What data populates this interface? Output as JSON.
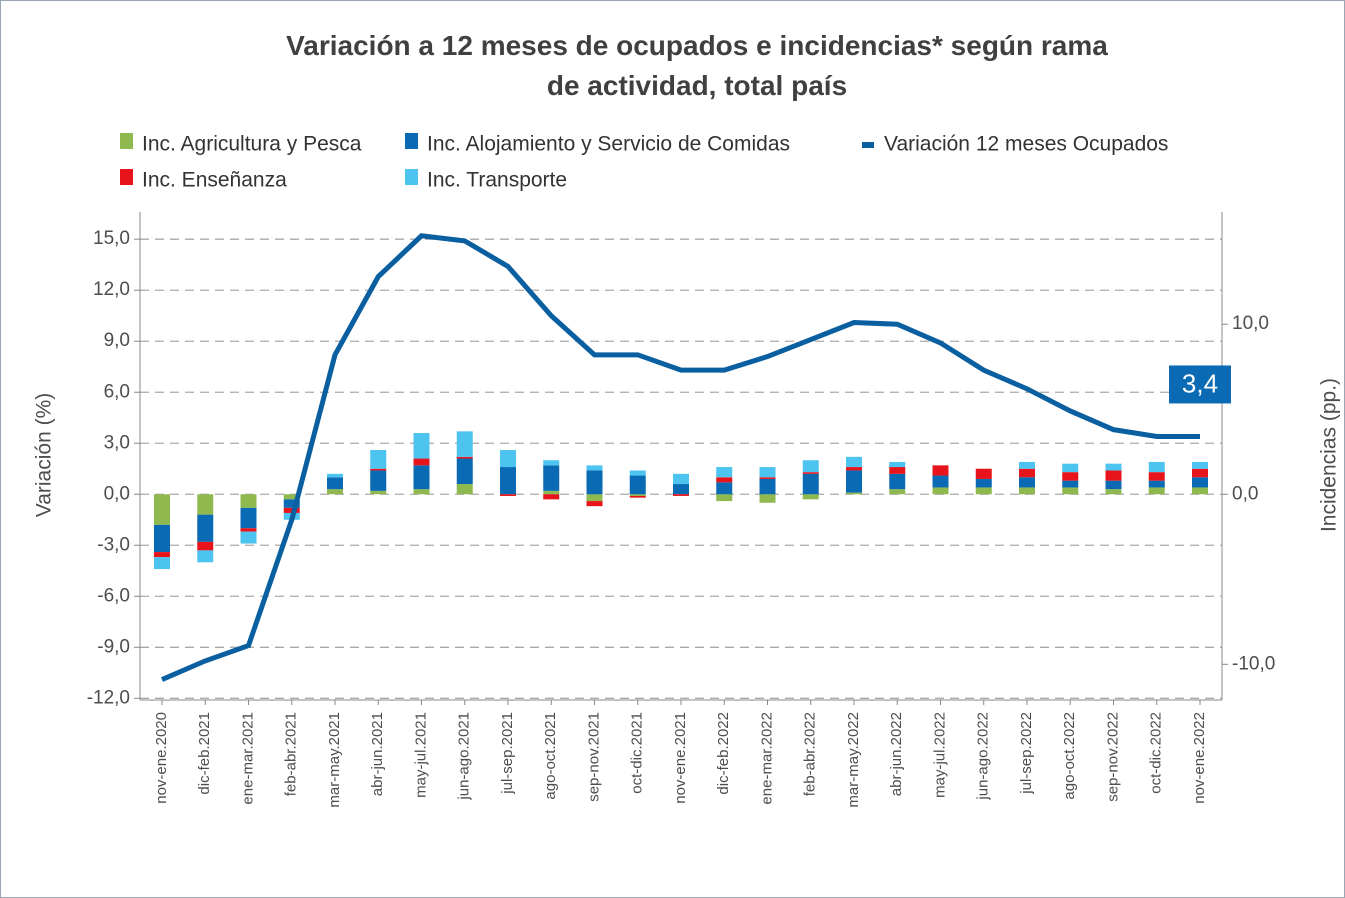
{
  "chart_data": {
    "type": "bar",
    "title": "Variación a 12 meses de ocupados e incidencias* según rama de actividad, total país",
    "y_label": "Variación (%)",
    "y2_label": "Incidencias (pp.)",
    "categories": [
      "nov-ene.2020",
      "dic-feb.2021",
      "ene-mar.2021",
      "feb-abr.2021",
      "mar-may.2021",
      "abr-jun.2021",
      "may-jul.2021",
      "jun-ago.2021",
      "jul-sep.2021",
      "ago-oct.2021",
      "sep-nov.2021",
      "oct-dic.2021",
      "nov-ene.2021",
      "dic-feb.2022",
      "ene-mar.2022",
      "feb-abr.2022",
      "mar-may.2022",
      "abr-jun.2022",
      "may-jul.2022",
      "jun-ago.2022",
      "jul-sep.2022",
      "ago-oct.2022",
      "sep-nov.2022",
      "oct-dic.2022",
      "nov-ene.2022"
    ],
    "series": [
      {
        "name": "Inc. Agricultura y Pesca",
        "type": "bar",
        "axis": "y2",
        "color": "#8fb84f",
        "values": [
          -1.8,
          -1.2,
          -0.8,
          -0.3,
          0.3,
          0.2,
          0.3,
          0.6,
          0.0,
          0.2,
          -0.4,
          -0.1,
          0.0,
          -0.4,
          -0.5,
          -0.3,
          0.1,
          0.3,
          0.4,
          0.4,
          0.4,
          0.4,
          0.3,
          0.4,
          0.4
        ]
      },
      {
        "name": "Inc. Alojamiento y Servicio de Comidas",
        "type": "bar",
        "axis": "y2",
        "color": "#0a6ab3",
        "values": [
          -1.6,
          -1.6,
          -1.2,
          -0.5,
          0.7,
          1.2,
          1.4,
          1.5,
          1.6,
          1.5,
          1.4,
          1.1,
          0.6,
          0.7,
          0.9,
          1.2,
          1.3,
          0.9,
          0.7,
          0.5,
          0.6,
          0.4,
          0.5,
          0.4,
          0.6
        ]
      },
      {
        "name": "Variación 12 meses Ocupados",
        "type": "line",
        "color": "#0a5fa0",
        "values": [
          -10.9,
          -9.8,
          -8.9,
          -1.5,
          8.2,
          12.8,
          15.2,
          14.9,
          13.4,
          10.5,
          8.2,
          8.2,
          7.3,
          7.3,
          8.1,
          9.1,
          10.1,
          10.0,
          8.9,
          7.3,
          6.2,
          4.9,
          3.8,
          3.4,
          3.4
        ],
        "value_labels": [
          null,
          null,
          null,
          null,
          null,
          null,
          null,
          null,
          null,
          null,
          null,
          null,
          null,
          null,
          null,
          null,
          null,
          null,
          null,
          null,
          null,
          null,
          null,
          null,
          "3,4"
        ]
      },
      {
        "name": "Inc. Enseñanza",
        "type": "bar",
        "axis": "y2",
        "color": "#e8141c",
        "values": [
          -0.3,
          -0.5,
          -0.2,
          -0.3,
          0.0,
          0.1,
          0.4,
          0.1,
          -0.1,
          -0.3,
          -0.3,
          -0.1,
          -0.1,
          0.3,
          0.1,
          0.1,
          0.2,
          0.4,
          0.6,
          0.6,
          0.5,
          0.5,
          0.6,
          0.5,
          0.5
        ]
      },
      {
        "name": "Inc. Transporte",
        "type": "bar",
        "axis": "y2",
        "color": "#4dc3f0",
        "values": [
          -0.7,
          -0.7,
          -0.7,
          -0.4,
          0.2,
          1.1,
          1.5,
          1.5,
          1.0,
          0.3,
          0.3,
          0.3,
          0.6,
          0.6,
          0.6,
          0.7,
          0.6,
          0.3,
          0.0,
          0.0,
          0.4,
          0.5,
          0.4,
          0.6,
          0.4
        ]
      }
    ],
    "ylim": [
      -12.1,
      16.6
    ],
    "yticks": [
      {
        "value": -12,
        "label": "-12,0"
      },
      {
        "value": -9,
        "label": "-9,0"
      },
      {
        "value": -6,
        "label": "-6,0"
      },
      {
        "value": -3,
        "label": "-3,0"
      },
      {
        "value": 0,
        "label": "0,0"
      },
      {
        "value": 3,
        "label": "3,0"
      },
      {
        "value": 6,
        "label": "6,0"
      },
      {
        "value": 9,
        "label": "9,0"
      },
      {
        "value": 12,
        "label": "12,0"
      },
      {
        "value": 15,
        "label": "15,0"
      }
    ],
    "y2lim": [
      -12.1,
      16.6
    ],
    "y2ticks": [
      {
        "value": -10,
        "label": "-10,0"
      },
      {
        "value": 0,
        "label": "0,0"
      },
      {
        "value": 10,
        "label": "10,0"
      }
    ],
    "grid": true,
    "legend": "top"
  }
}
